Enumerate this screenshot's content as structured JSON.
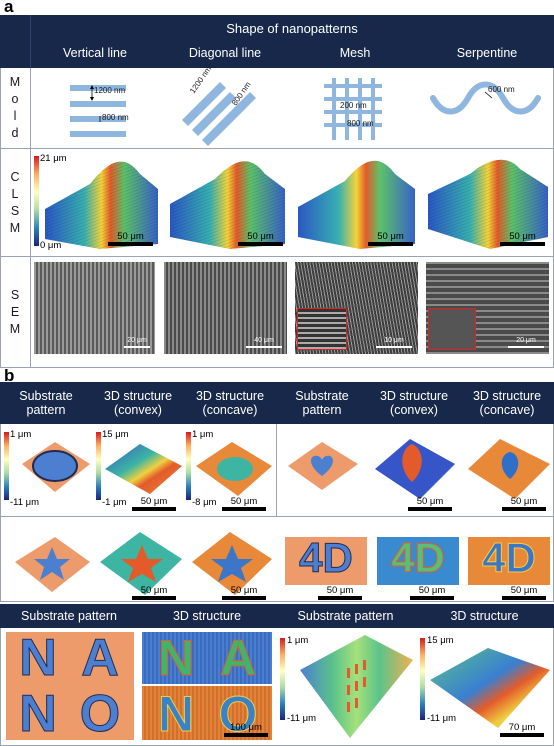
{
  "panel_a": {
    "letter": "a",
    "title": "Shape of nanopatterns",
    "columns": [
      "Vertical line",
      "Diagonal line",
      "Mesh",
      "Serpentine"
    ],
    "rows": {
      "mold": [
        "M",
        "o",
        "l",
        "d"
      ],
      "clsm": [
        "C",
        "L",
        "S",
        "M"
      ],
      "sem": [
        "S",
        "E",
        "M"
      ]
    },
    "mold_dims": {
      "vertical": {
        "spacing": "1200 nm",
        "width": "800 nm"
      },
      "diagonal": {
        "spacing": "1200 nm",
        "width": "800 nm"
      },
      "mesh": {
        "a": "200 nm",
        "b": "800 nm"
      },
      "serpentine": {
        "a": "600 nm"
      }
    },
    "clsm_colorbar": {
      "top": "21 μm",
      "bottom": "0 μm"
    },
    "clsm_scale": [
      "50 μm",
      "50 μm",
      "50 μm",
      "50 μm"
    ],
    "sem_scale": [
      "20 μm",
      "40 μm",
      "10 μm",
      "20 μm"
    ]
  },
  "panel_b": {
    "letter": "b",
    "headers": [
      "Substrate\npattern",
      "3D structure\n(convex)",
      "3D structure\n(concave)",
      "Substrate\npattern",
      "3D structure\n(convex)",
      "3D structure\n(concave)"
    ],
    "row1": {
      "cbar1": {
        "top": "1 μm",
        "bottom": "-11 μm"
      },
      "cbar2": {
        "top": "15 μm",
        "bottom": "-1 μm"
      },
      "cbar3": {
        "top": "1 μm",
        "bottom": "-8 μm"
      },
      "scale_convex": "50 μm",
      "scale_concave": "50 μm",
      "scale_right_convex": "50 μm",
      "scale_right_concave": "50 μm"
    },
    "row2": {
      "letters": "4D",
      "scales": [
        "50 μm",
        "50 μm",
        "50 μm",
        "50 μm",
        "50 μm"
      ]
    },
    "bottom_headers": [
      "Substrate pattern",
      "3D structure",
      "Substrate pattern",
      "3D structure"
    ],
    "bottom": {
      "letters_top": [
        "N",
        "A"
      ],
      "letters_bottom": [
        "N",
        "O"
      ],
      "nano_scale": "100 μm",
      "cbar_left": {
        "top": "1 μm",
        "bottom": "-11 μm"
      },
      "cbar_right": {
        "top": "15 μm",
        "bottom": "-11 μm"
      },
      "right_scale": "70 μm"
    }
  },
  "colors": {
    "navy": "#17284a",
    "mold_blue": "#8fb6de",
    "substrate": "#ee9b6c",
    "pattern_blue": "#4c7fcf"
  }
}
